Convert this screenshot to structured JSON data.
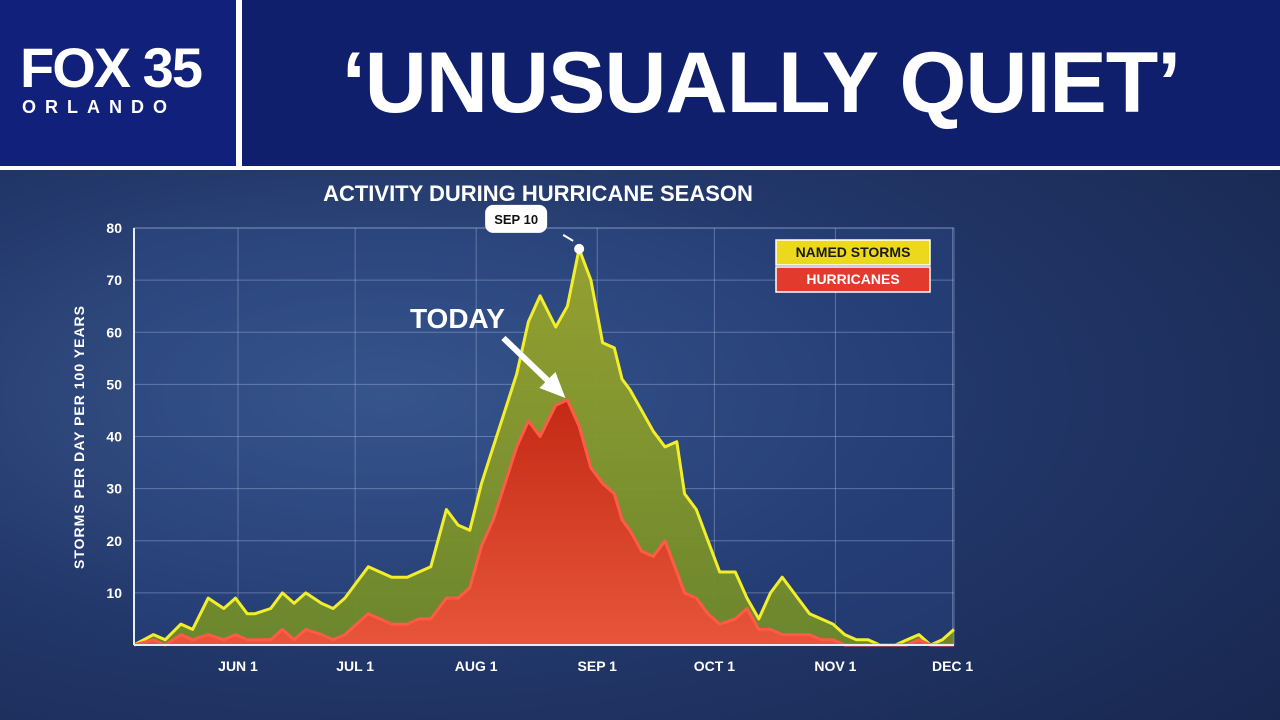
{
  "header": {
    "logo_main": "FOX 35",
    "logo_sub": "ORLANDO",
    "headline": "‘UNUSUALLY QUIET’"
  },
  "colors": {
    "banner": "#0f1f6b",
    "named_storms_line": "#f2ee2c",
    "named_storms_fill": "#8a9a28",
    "hurricanes_line": "#ff5a45",
    "hurricanes_fill": "#d63a20"
  },
  "chart_data": {
    "type": "area",
    "title": "ACTIVITY DURING HURRICANE SEASON",
    "ylabel": "STORMS PER DAY PER 100 YEARS",
    "xlabel": "",
    "ylim": [
      0,
      80
    ],
    "yticks": [
      10,
      20,
      30,
      40,
      50,
      60,
      70,
      80
    ],
    "xlim": [
      0,
      210
    ],
    "xticks": [
      {
        "day": 31,
        "label": "JUN 1"
      },
      {
        "day": 61,
        "label": "JUL 1"
      },
      {
        "day": 92,
        "label": "AUG 1"
      },
      {
        "day": 123,
        "label": "SEP 1"
      },
      {
        "day": 153,
        "label": "OCT 1"
      },
      {
        "day": 184,
        "label": "NOV 1"
      },
      {
        "day": 214,
        "label": "DEC 1"
      }
    ],
    "grid": true,
    "legend_position": "top-right",
    "series": [
      {
        "name": "NAMED STORMS",
        "x": [
          0,
          5,
          8,
          12,
          15,
          19,
          23,
          26,
          29,
          31,
          35,
          38,
          41,
          44,
          48,
          51,
          54,
          57,
          60,
          63,
          66,
          70,
          73,
          76,
          80,
          83,
          86,
          89,
          92,
          95,
          98,
          101,
          104,
          108,
          111,
          114,
          117,
          120,
          123,
          125,
          127,
          130,
          133,
          136,
          139,
          141,
          144,
          147,
          150,
          154,
          157,
          160,
          163,
          166,
          170,
          173,
          176,
          179,
          182,
          185,
          188,
          191,
          195,
          198,
          201,
          204,
          207,
          210
        ],
        "values": [
          0,
          2,
          1,
          4,
          3,
          9,
          7,
          9,
          6,
          6,
          7,
          10,
          8,
          10,
          8,
          7,
          9,
          12,
          15,
          14,
          13,
          13,
          14,
          15,
          26,
          23,
          22,
          31,
          38,
          45,
          52,
          62,
          67,
          61,
          65,
          76,
          70,
          58,
          57,
          51,
          49,
          45,
          41,
          38,
          39,
          29,
          26,
          20,
          14,
          14,
          9,
          5,
          10,
          13,
          9,
          6,
          5,
          4,
          2,
          1,
          1,
          0,
          0,
          1,
          2,
          0,
          1,
          3
        ],
        "line_color": "#f2ee2c",
        "fill_color": "#8a9a28"
      },
      {
        "name": "HURRICANES",
        "x": [
          0,
          5,
          8,
          12,
          15,
          19,
          23,
          26,
          29,
          31,
          35,
          38,
          41,
          44,
          48,
          51,
          54,
          57,
          60,
          63,
          66,
          70,
          73,
          76,
          80,
          83,
          86,
          89,
          92,
          95,
          98,
          101,
          104,
          108,
          111,
          114,
          117,
          120,
          123,
          125,
          127,
          130,
          133,
          136,
          139,
          141,
          144,
          147,
          150,
          154,
          157,
          160,
          163,
          166,
          170,
          173,
          176,
          179,
          182,
          185,
          188,
          191,
          195,
          198,
          201,
          204,
          207,
          210
        ],
        "values": [
          0,
          1,
          0,
          2,
          1,
          2,
          1,
          2,
          1,
          1,
          1,
          3,
          1,
          3,
          2,
          1,
          2,
          4,
          6,
          5,
          4,
          4,
          5,
          5,
          9,
          9,
          11,
          19,
          24,
          31,
          38,
          43,
          40,
          46,
          47,
          42,
          34,
          31,
          29,
          24,
          22,
          18,
          17,
          20,
          14,
          10,
          9,
          6,
          4,
          5,
          7,
          3,
          3,
          2,
          2,
          2,
          1,
          1,
          0,
          0,
          0,
          0,
          0,
          0,
          1,
          0,
          0,
          0
        ],
        "line_color": "#ff5a45",
        "fill_color": "#d63a20"
      }
    ],
    "annotations": [
      {
        "label": "SEP 10",
        "x": 114,
        "y": 76
      },
      {
        "label": "TODAY",
        "x": 111,
        "y": 47
      }
    ]
  }
}
